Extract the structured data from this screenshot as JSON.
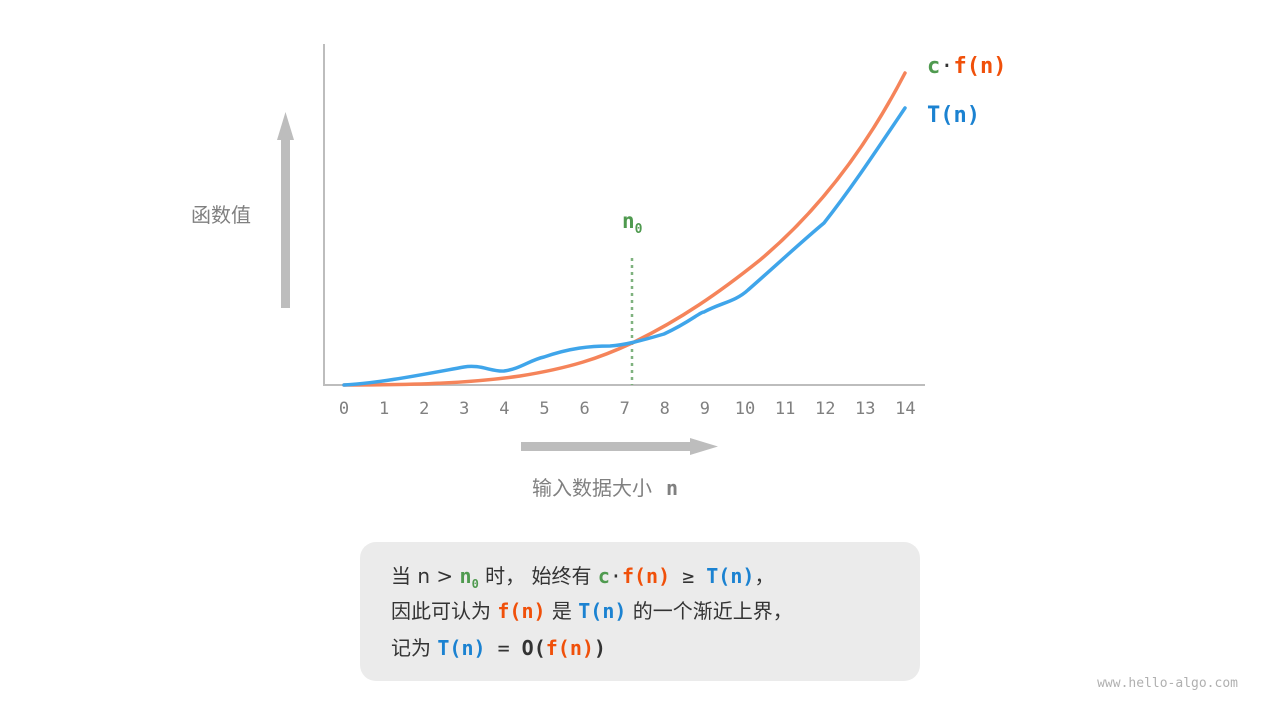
{
  "y_axis_label": "函数值",
  "x_axis_label": "输入数据大小",
  "x_axis_var": "n",
  "x_ticks": [
    "0",
    "1",
    "2",
    "3",
    "4",
    "5",
    "6",
    "7",
    "8",
    "9",
    "10",
    "11",
    "12",
    "13",
    "14"
  ],
  "n0_label": "n",
  "n0_sub": "0",
  "legend": {
    "c": "c",
    "dot": "·",
    "f": "f(n)",
    "T": "T(n)"
  },
  "colors": {
    "cf": "#f5845a",
    "T": "#3fa5ea",
    "n0": "#4f9a4f",
    "axis": "#bdbdbd"
  },
  "note": {
    "l1_a": "当 n > ",
    "l1_n": "n",
    "l1_sub": "0",
    "l1_b": " 时， 始终有 ",
    "l1_c": "c",
    "l1_dot": "·",
    "l1_f": "f(n)",
    "l1_ge": " ≥ ",
    "l1_T": "T(n)",
    "l1_end": "，",
    "l2_a": "因此可认为 ",
    "l2_f": "f(n)",
    "l2_b": " 是 ",
    "l2_T": "T(n)",
    "l2_c": " 的一个渐近上界，",
    "l3_a": "记为 ",
    "l3_T": "T(n)",
    "l3_eq": " = ",
    "l3_O": "O(",
    "l3_f": "f(n)",
    "l3_close": ")"
  },
  "watermark": "www.hello-algo.com"
}
